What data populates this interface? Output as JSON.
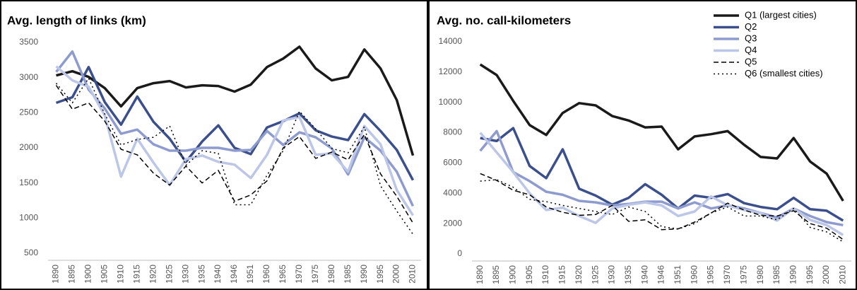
{
  "chart_data": [
    {
      "type": "line",
      "title": "Avg. length of links (km)",
      "categories": [
        "1890",
        "1895",
        "1900",
        "1905",
        "1910",
        "1915",
        "1920",
        "1925",
        "1930",
        "1935",
        "1940",
        "1946",
        "1951",
        "1960",
        "1965",
        "1970",
        "1975",
        "1980",
        "1985",
        "1990",
        "1995",
        "2000",
        "2010"
      ],
      "ylim": [
        500,
        3500
      ],
      "yticks": [
        500,
        1000,
        1500,
        2000,
        2500,
        3000,
        3500
      ],
      "grid": false,
      "series": [
        {
          "color": "#1a1a1a",
          "line_style": "solid",
          "values": [
            3030,
            3090,
            3010,
            2850,
            2590,
            2850,
            2920,
            2950,
            2860,
            2890,
            2880,
            2800,
            2900,
            3150,
            3270,
            3440,
            3130,
            2960,
            3010,
            3400,
            3130,
            2680,
            1890
          ]
        },
        {
          "color": "#3b4f8c",
          "line_style": "solid",
          "values": [
            2640,
            2720,
            3150,
            2650,
            2330,
            2730,
            2370,
            2130,
            1800,
            2090,
            2320,
            2000,
            1910,
            2290,
            2380,
            2490,
            2250,
            2160,
            2110,
            2480,
            2240,
            1970,
            1540
          ]
        },
        {
          "color": "#8e9bcf",
          "line_style": "solid",
          "values": [
            3080,
            3370,
            2830,
            2560,
            2200,
            2260,
            2050,
            1960,
            1960,
            2000,
            2000,
            1960,
            1970,
            2240,
            2040,
            2220,
            2150,
            1990,
            1620,
            2150,
            1960,
            1660,
            1170
          ]
        },
        {
          "color": "#bcc6e6",
          "line_style": "solid",
          "values": [
            3160,
            2960,
            2870,
            2460,
            1590,
            2130,
            1790,
            1470,
            1840,
            1890,
            1800,
            1760,
            1570,
            1900,
            2390,
            2440,
            1900,
            1920,
            1660,
            2310,
            2050,
            1400,
            1040
          ]
        },
        {
          "color": "#000000",
          "line_style": "dashed",
          "values": [
            2890,
            2550,
            2640,
            2380,
            1980,
            1900,
            1640,
            1470,
            1740,
            1500,
            1680,
            1240,
            1330,
            1530,
            2000,
            2160,
            1850,
            1940,
            1830,
            2190,
            1630,
            1310,
            930
          ]
        },
        {
          "color": "#000000",
          "line_style": "dotted",
          "values": [
            2920,
            2640,
            2990,
            2480,
            2040,
            2120,
            2150,
            2310,
            1750,
            1960,
            1920,
            1190,
            1190,
            1610,
            1960,
            2520,
            2270,
            1990,
            1930,
            2300,
            1460,
            1100,
            770
          ]
        }
      ]
    },
    {
      "type": "line",
      "title": "Avg. no. call-kilometers",
      "legend": "upper right",
      "categories": [
        "1890",
        "1895",
        "1900",
        "1905",
        "1910",
        "1915",
        "1920",
        "1925",
        "1930",
        "1935",
        "1940",
        "1946",
        "1951",
        "1960",
        "1965",
        "1970",
        "1975",
        "1980",
        "1985",
        "1990",
        "1995",
        "2000",
        "2010"
      ],
      "ylim": [
        0,
        14000
      ],
      "yticks": [
        0,
        2000,
        4000,
        6000,
        8000,
        10000,
        12000,
        14000
      ],
      "grid": false,
      "series": [
        {
          "name": "Q1 (largest cities)",
          "color": "#1a1a1a",
          "line_style": "solid",
          "values": [
            12500,
            11800,
            10100,
            8500,
            7850,
            9300,
            9950,
            9800,
            9100,
            8800,
            8350,
            8400,
            6900,
            7750,
            7900,
            8100,
            7200,
            6400,
            6300,
            7650,
            6100,
            5300,
            3500
          ]
        },
        {
          "name": "Q2",
          "color": "#3b4f8c",
          "line_style": "solid",
          "values": [
            7650,
            7450,
            8300,
            5800,
            5000,
            6900,
            4300,
            3850,
            3250,
            3700,
            4600,
            3900,
            3000,
            3850,
            3700,
            3950,
            3350,
            3100,
            2950,
            3700,
            2950,
            2850,
            2200
          ]
        },
        {
          "name": "Q3",
          "color": "#8e9bcf",
          "line_style": "solid",
          "values": [
            6800,
            8100,
            5400,
            4800,
            4100,
            3900,
            3500,
            3400,
            3200,
            3300,
            3450,
            3450,
            3000,
            3400,
            3000,
            3200,
            3000,
            2700,
            2400,
            3000,
            2500,
            2100,
            1900
          ]
        },
        {
          "name": "Q4",
          "color": "#bcc6e6",
          "line_style": "solid",
          "values": [
            8000,
            6700,
            5400,
            4000,
            2900,
            3050,
            2500,
            2050,
            3000,
            3250,
            3400,
            3200,
            2500,
            2800,
            3800,
            3200,
            2900,
            2700,
            2200,
            3000,
            2250,
            1900,
            1250
          ]
        },
        {
          "name": "Q5",
          "color": "#000000",
          "line_style": "dashed",
          "values": [
            5300,
            4850,
            4200,
            3900,
            3100,
            2750,
            2550,
            2600,
            3200,
            2150,
            2250,
            1600,
            1650,
            2100,
            2700,
            3350,
            2900,
            2550,
            2500,
            2850,
            2000,
            1700,
            950
          ]
        },
        {
          "name": "Q6 (smallest cities)",
          "color": "#000000",
          "line_style": "dotted",
          "values": [
            4800,
            4900,
            4400,
            3600,
            3450,
            3200,
            3000,
            2800,
            2600,
            3100,
            2800,
            1800,
            1650,
            2000,
            2700,
            3100,
            2500,
            2500,
            2250,
            3000,
            1750,
            1450,
            800
          ]
        }
      ]
    }
  ]
}
